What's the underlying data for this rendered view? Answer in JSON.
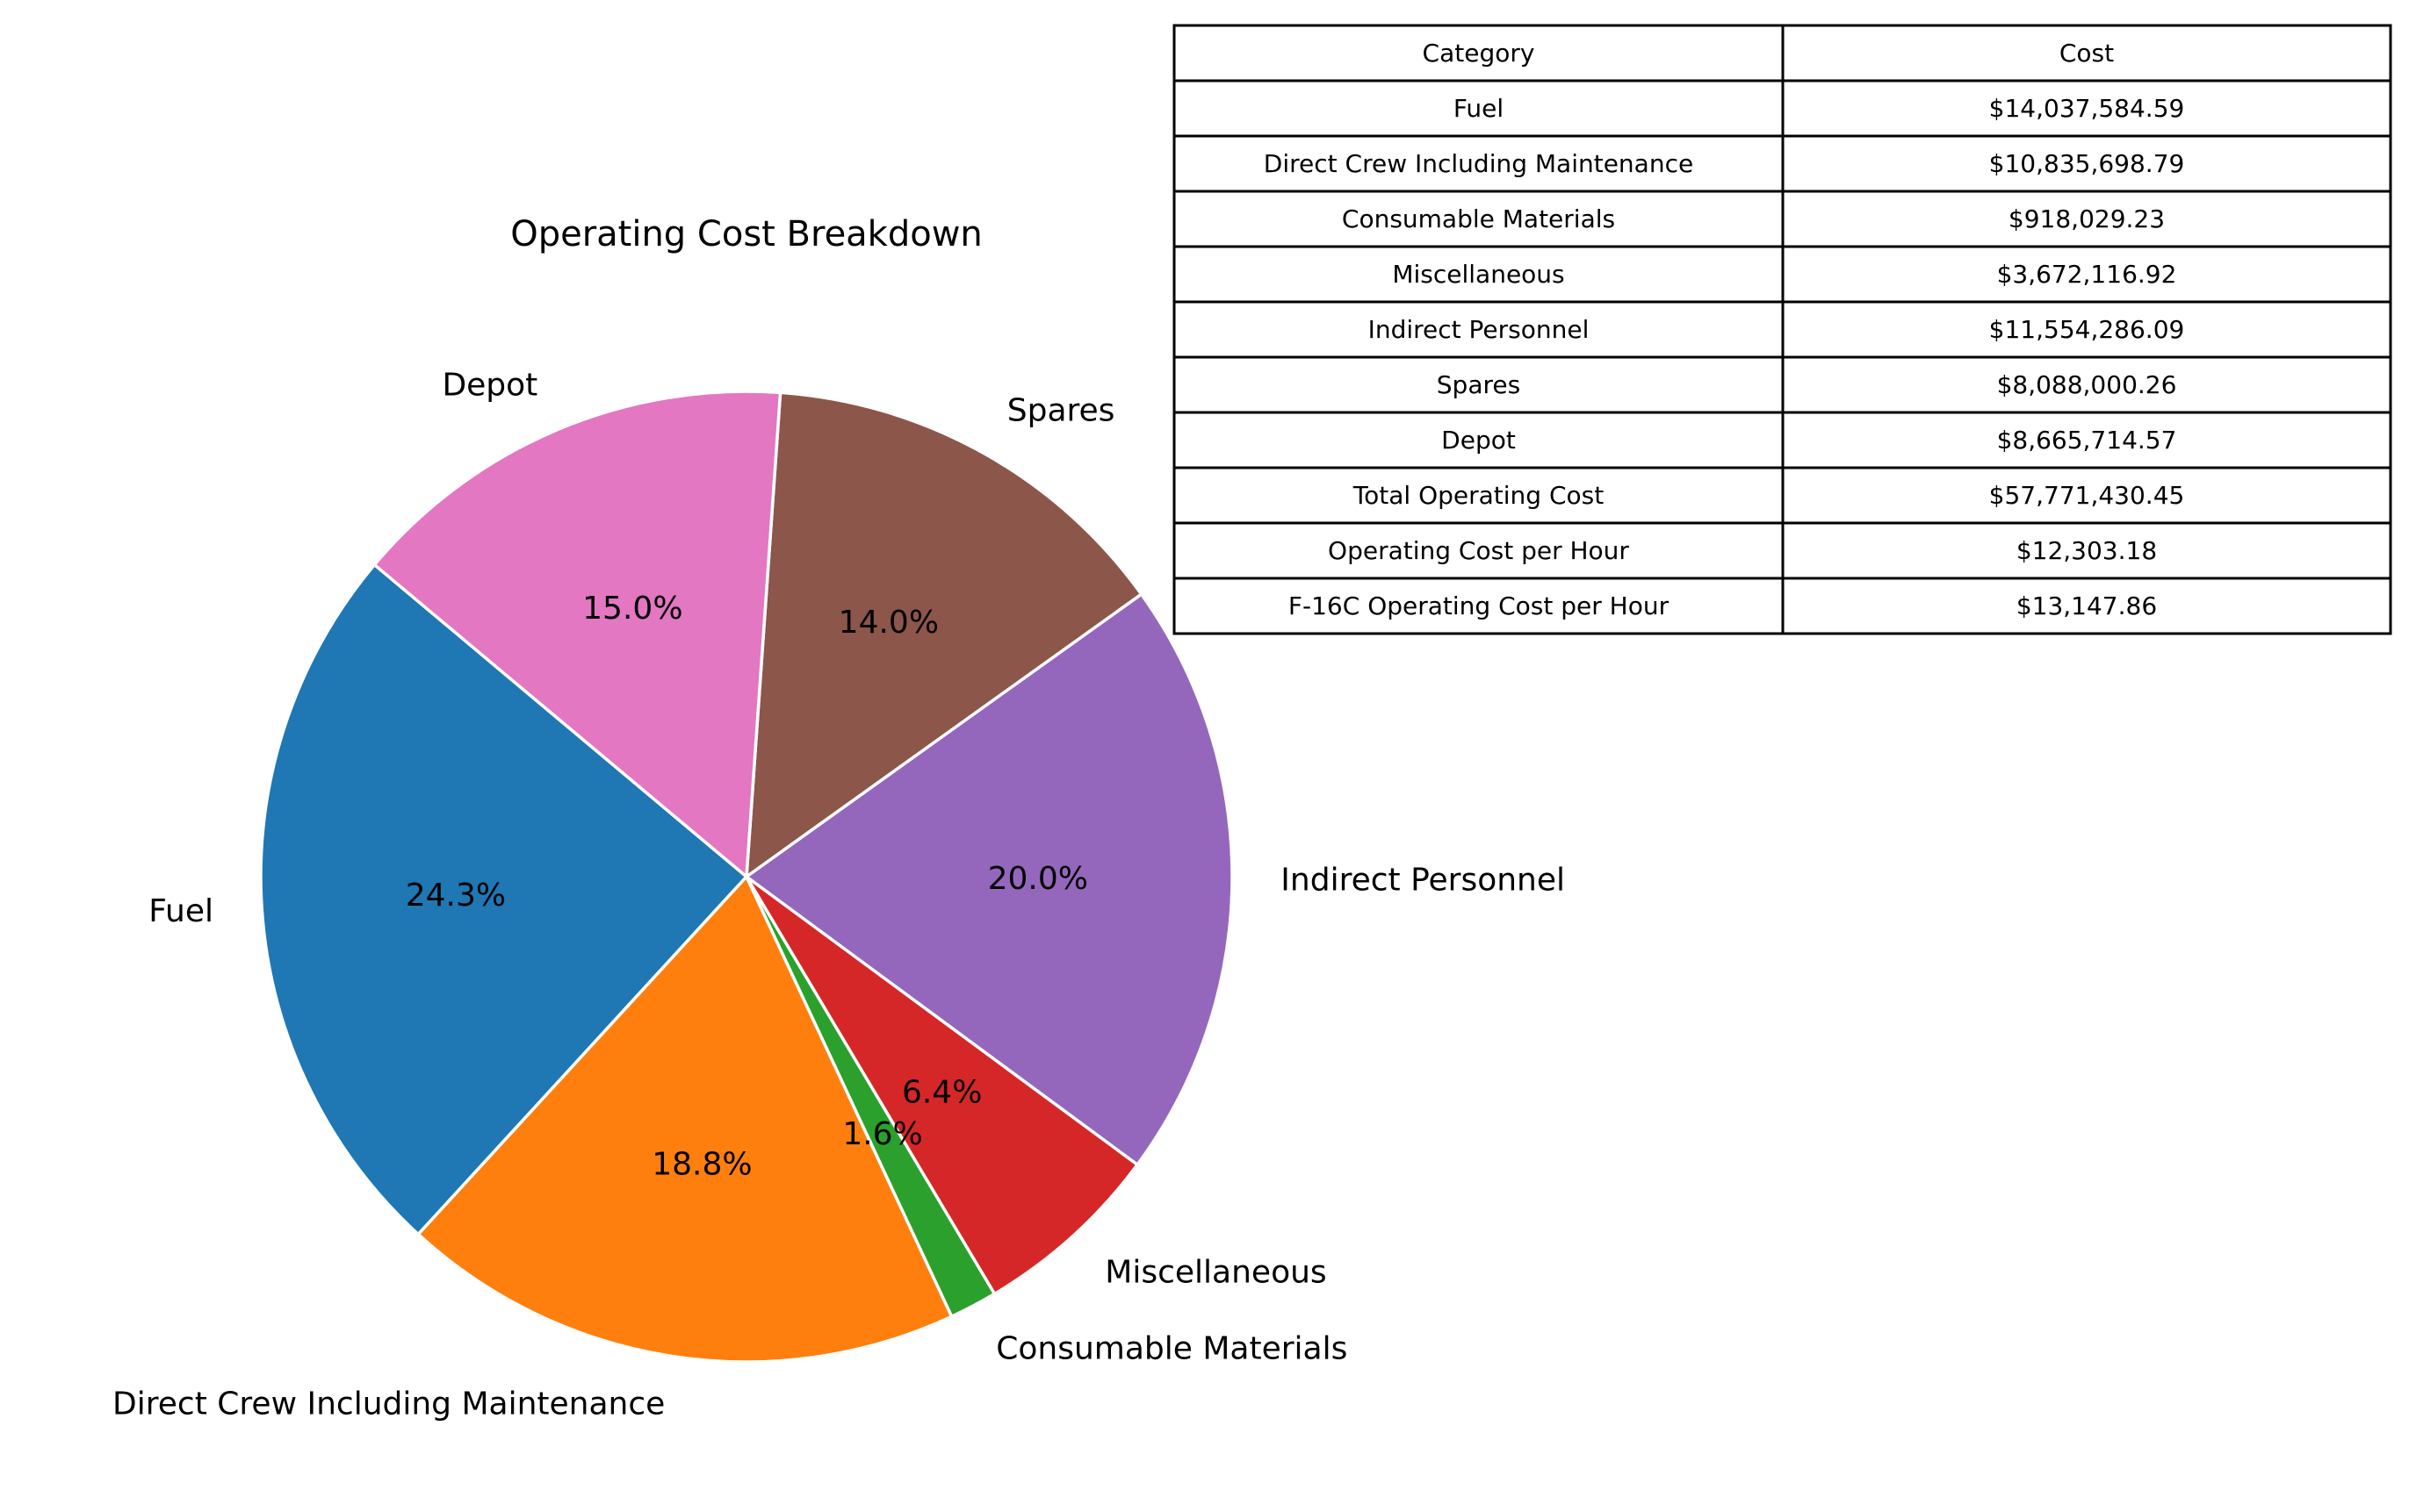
{
  "chart_data": {
    "type": "pie",
    "title": "Operating Cost Breakdown",
    "start_angle_deg": 140,
    "direction": "counterclockwise",
    "categories": [
      "Fuel",
      "Direct Crew Including Maintenance",
      "Consumable Materials",
      "Miscellaneous",
      "Indirect Personnel",
      "Spares",
      "Depot"
    ],
    "values": [
      14037584.59,
      10835698.79,
      918029.23,
      3672116.92,
      11554286.09,
      8088000.26,
      8665714.57
    ],
    "percent_labels": [
      "24.3%",
      "18.8%",
      "1.6%",
      "6.4%",
      "20.0%",
      "14.0%",
      "15.0%"
    ],
    "colors": [
      "#1f77b4",
      "#ff7f0e",
      "#2ca02c",
      "#d62728",
      "#9467bd",
      "#8c564b",
      "#e377c2"
    ],
    "wedge_edge_color": "#ffffff",
    "table": {
      "headers": [
        "Category",
        "Cost"
      ],
      "rows": [
        [
          "Fuel",
          "$14,037,584.59"
        ],
        [
          "Direct Crew Including Maintenance",
          "$10,835,698.79"
        ],
        [
          "Consumable Materials",
          "$918,029.23"
        ],
        [
          "Miscellaneous",
          "$3,672,116.92"
        ],
        [
          "Indirect Personnel",
          "$11,554,286.09"
        ],
        [
          "Spares",
          "$8,088,000.26"
        ],
        [
          "Depot",
          "$8,665,714.57"
        ],
        [
          "Total Operating Cost",
          "$57,771,430.45"
        ],
        [
          "Operating Cost per Hour",
          "$12,303.18"
        ],
        [
          "F-16C Operating Cost per Hour",
          "$13,147.86"
        ]
      ]
    }
  }
}
